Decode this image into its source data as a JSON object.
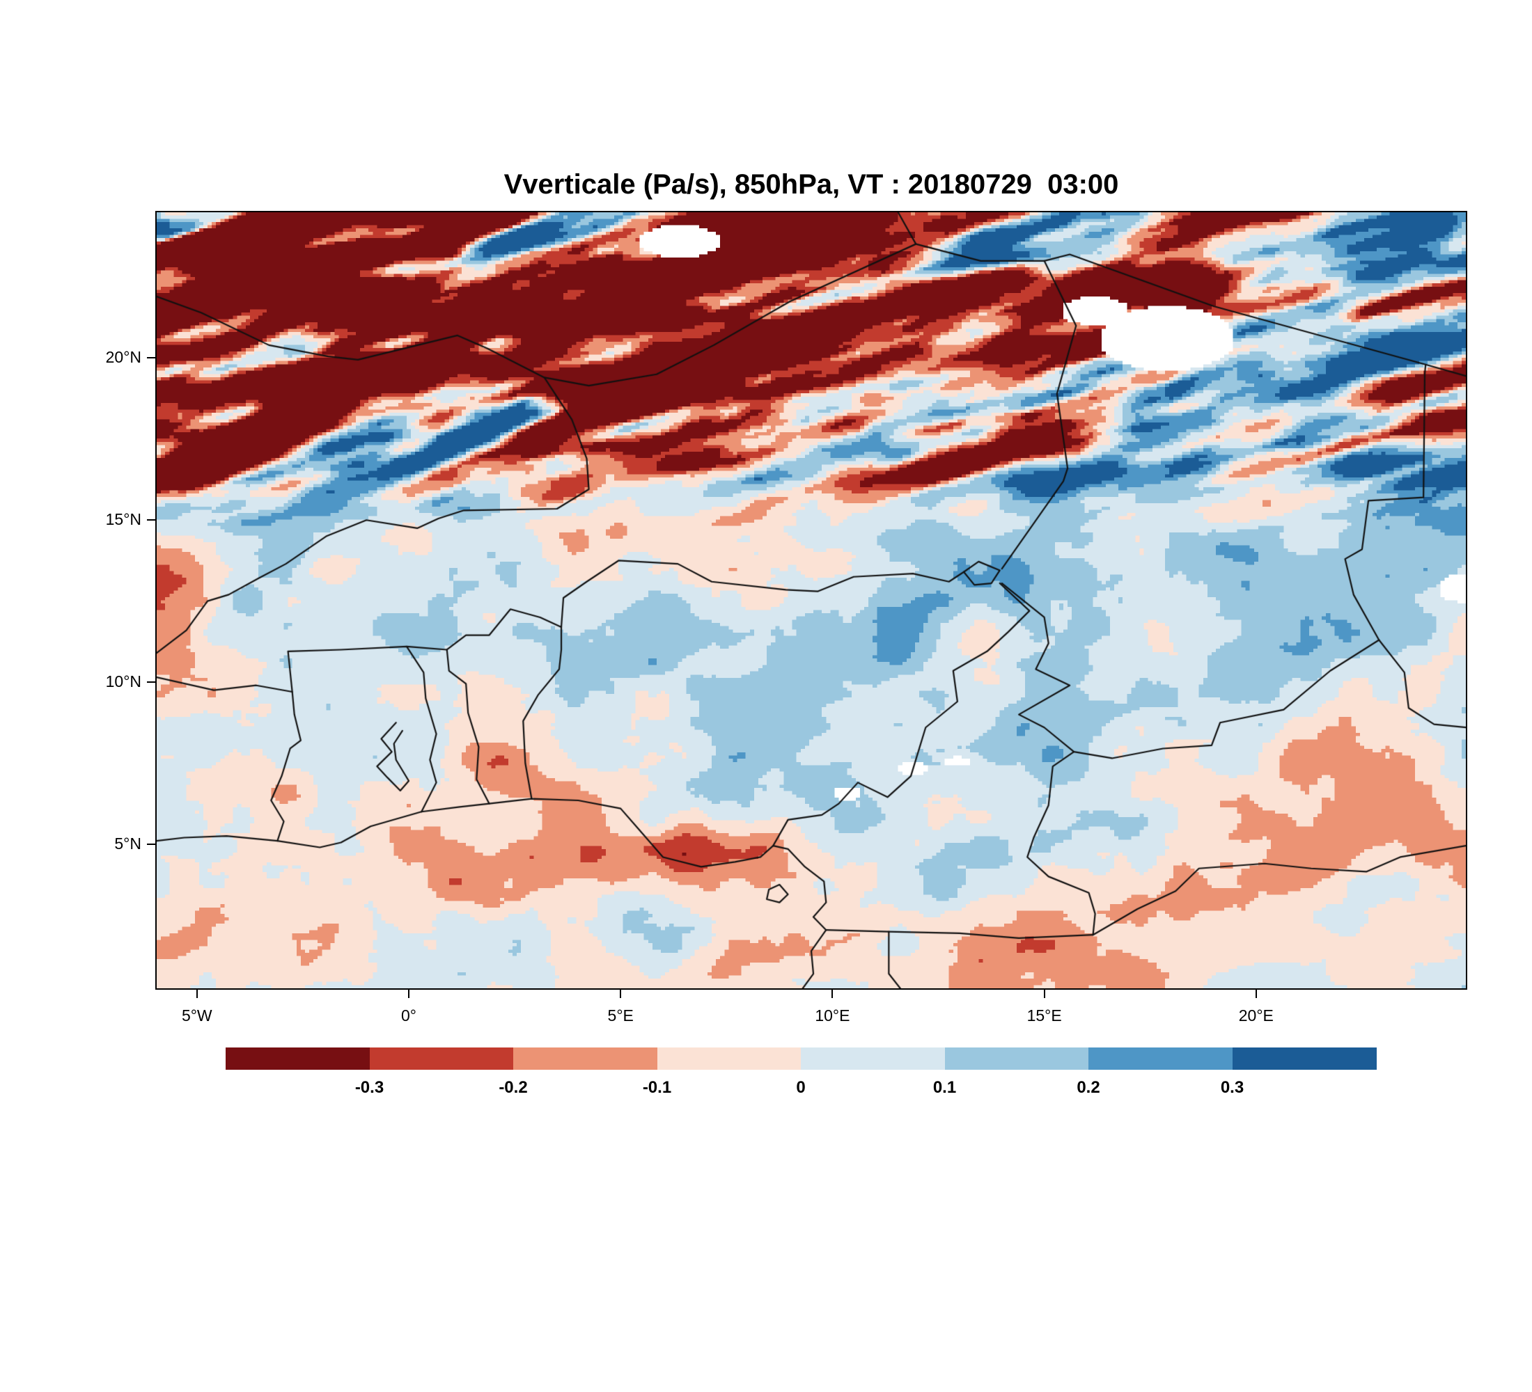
{
  "title": "Vverticale (Pa/s), 850hPa, VT : 20180729  03:00",
  "chart_data": {
    "type": "heatmap",
    "variable": "Vverticale",
    "units": "Pa/s",
    "pressure_level": "850hPa",
    "valid_time": "20180729 03:00",
    "title": "Vverticale (Pa/s), 850hPa, VT : 20180729  03:00",
    "extent": {
      "lon_min": -5.95,
      "lon_max": 24.95,
      "lat_min": 0.55,
      "lat_max": 24.5
    },
    "grid": {
      "nx": 309,
      "ny": 240
    },
    "xticks": [
      {
        "lon": -5,
        "label": "5°W"
      },
      {
        "lon": 0,
        "label": "0°"
      },
      {
        "lon": 5,
        "label": "5°E"
      },
      {
        "lon": 10,
        "label": "10°E"
      },
      {
        "lon": 15,
        "label": "15°E"
      },
      {
        "lon": 20,
        "label": "20°E"
      }
    ],
    "yticks": [
      {
        "lat": 20,
        "label": "20°N"
      },
      {
        "lat": 15,
        "label": "15°N"
      },
      {
        "lat": 10,
        "label": "10°N"
      },
      {
        "lat": 5,
        "label": "5°N"
      }
    ],
    "colorbar": {
      "levels": [
        -0.3,
        -0.2,
        -0.1,
        0,
        0.1,
        0.2,
        0.3
      ],
      "labels": [
        "-0.3",
        "-0.2",
        "-0.1",
        "0",
        "0.1",
        "0.2",
        "0.3"
      ],
      "colors": [
        "#770f12",
        "#c23b2e",
        "#ec9374",
        "#fbe2d5",
        "#d7e7f0",
        "#9ac7df",
        "#4e96c6",
        "#1b5c96"
      ],
      "missing_color": "#ffffff",
      "orientation": "horizontal"
    },
    "field_summary": [
      "Strong alternating SW-NE elongated bands of subsidence (dark red, < -0.3 Pa/s) and ascent (dark blue, > 0.3 Pa/s) across the Sahara between 15N and 24.5N, most intense in the northwest quadrant",
      "Dark red descent band hugging the Guinea coast near 4-5N between 4E and 9E",
      "Mostly weak values between -0.1 and 0.1 (pale pink / pale blue) over the band 5N-14N",
      "Pale blue broad zone around 12N-16N mid-longitudes; pale pink dominates south of 8N",
      "Scattered strong blue cells near 10N 0E, 7-8N 10-12E, 5-6N 22-23E and along 17-24E 13-18N",
      "White pixels indicate missing/masked data: near 6-7E 23-24N, 16-19E 20-21.5N and small spots near 10-13E 6-8N"
    ],
    "noise": {
      "seeds": [
        11,
        23,
        47,
        83,
        131
      ],
      "base": [
        {
          "amp": 0.22,
          "fx": 0.18,
          "fy": 0.18,
          "oct": 3,
          "seed_index": 0
        },
        {
          "amp": 0.2,
          "fx": 0.52,
          "fy": 0.52,
          "oct": 4,
          "seed_index": 1
        },
        {
          "amp": 0.13,
          "fx": 0.3,
          "fy": 0.3,
          "oct": 3,
          "seed_index": 4
        }
      ],
      "band": {
        "angle_cos": 0.94,
        "angle_sin": 0.34,
        "ramp_lat0": 14.2,
        "ramp_lat1": 17.6,
        "terms": [
          {
            "amp": 1.0,
            "fa": 0.17,
            "fb": 0.8,
            "oct": 3,
            "seed_index": 2
          },
          {
            "amp": 0.45,
            "fa": 0.45,
            "fb": 1.4,
            "oct": 3,
            "seed_index": 1
          }
        ],
        "bias": -0.05,
        "west_boost": 0.4
      },
      "coast_anomaly": {
        "lat": 4.55,
        "lon": 6.6,
        "sig_lat2": 1.1,
        "sig_lon2": 9.0,
        "amp": -0.5,
        "seed_index": 3
      },
      "lat_bias": {
        "blue_center": 14,
        "blue_sig2": 10,
        "blue_amp": 0.03,
        "south_amp": -0.018,
        "south_lat0": 4.5,
        "south_lat1": 8.5
      }
    },
    "missing_patches": [
      [
        6.4,
        23.6,
        0.95,
        0.5
      ],
      [
        17.9,
        20.6,
        1.6,
        1.0
      ],
      [
        16.2,
        21.45,
        0.8,
        0.45
      ],
      [
        24.9,
        12.9,
        0.6,
        0.45
      ],
      [
        11.9,
        7.35,
        0.4,
        0.2
      ],
      [
        12.95,
        7.55,
        0.3,
        0.15
      ],
      [
        10.35,
        6.55,
        0.35,
        0.2
      ]
    ]
  },
  "map": {
    "border_color": "#111111",
    "borders": [
      {
        "name": "guinea-coastline",
        "pts": [
          [
            -5.95,
            5.1
          ],
          [
            -5.3,
            5.2
          ],
          [
            -4.3,
            5.25
          ],
          [
            -3.1,
            5.1
          ],
          [
            -2.1,
            4.9
          ],
          [
            -1.6,
            5.05
          ],
          [
            -0.9,
            5.55
          ],
          [
            0.3,
            6.0
          ],
          [
            1.2,
            6.15
          ],
          [
            1.9,
            6.25
          ],
          [
            2.9,
            6.4
          ],
          [
            4.0,
            6.35
          ],
          [
            5.0,
            6.1
          ],
          [
            5.4,
            5.5
          ],
          [
            6.0,
            4.6
          ],
          [
            6.9,
            4.3
          ],
          [
            7.7,
            4.45
          ],
          [
            8.3,
            4.6
          ],
          [
            8.6,
            4.95
          ],
          [
            8.95,
            4.85
          ],
          [
            9.35,
            4.3
          ],
          [
            9.8,
            3.85
          ],
          [
            9.85,
            3.2
          ],
          [
            9.55,
            2.75
          ],
          [
            9.85,
            2.35
          ],
          [
            9.5,
            1.7
          ],
          [
            9.55,
            1.0
          ],
          [
            9.3,
            0.55
          ]
        ]
      },
      {
        "name": "bioko-island",
        "pts": [
          [
            8.45,
            3.3
          ],
          [
            8.75,
            3.2
          ],
          [
            8.95,
            3.45
          ],
          [
            8.75,
            3.75
          ],
          [
            8.5,
            3.6
          ],
          [
            8.45,
            3.3
          ]
        ]
      },
      {
        "name": "lake-volta",
        "pts": [
          [
            -0.3,
            8.75
          ],
          [
            -0.65,
            8.25
          ],
          [
            -0.4,
            7.85
          ],
          [
            -0.75,
            7.4
          ],
          [
            -0.5,
            7.05
          ],
          [
            -0.2,
            6.65
          ],
          [
            0.0,
            6.95
          ],
          [
            -0.3,
            7.6
          ],
          [
            -0.35,
            8.1
          ],
          [
            -0.15,
            8.5
          ]
        ]
      },
      {
        "name": "lake-chad",
        "pts": [
          [
            13.1,
            13.4
          ],
          [
            13.45,
            13.72
          ],
          [
            13.95,
            13.45
          ],
          [
            13.75,
            13.05
          ],
          [
            13.35,
            13.0
          ],
          [
            13.1,
            13.4
          ]
        ]
      },
      {
        "name": "cotedivoire-ghana",
        "pts": [
          [
            -3.1,
            5.1
          ],
          [
            -2.95,
            5.7
          ],
          [
            -3.25,
            6.35
          ],
          [
            -3.0,
            7.1
          ],
          [
            -2.8,
            7.95
          ],
          [
            -2.55,
            8.2
          ],
          [
            -2.7,
            9.0
          ],
          [
            -2.75,
            9.7
          ]
        ]
      },
      {
        "name": "ghana-togo",
        "pts": [
          [
            0.3,
            6.0
          ],
          [
            0.65,
            6.9
          ],
          [
            0.5,
            7.6
          ],
          [
            0.65,
            8.4
          ],
          [
            0.4,
            9.5
          ],
          [
            0.35,
            10.3
          ],
          [
            -0.05,
            11.1
          ]
        ]
      },
      {
        "name": "togo-benin",
        "pts": [
          [
            1.9,
            6.25
          ],
          [
            1.6,
            7.0
          ],
          [
            1.65,
            8.0
          ],
          [
            1.4,
            9.05
          ],
          [
            1.35,
            9.95
          ],
          [
            0.95,
            10.35
          ],
          [
            0.9,
            11.0
          ]
        ]
      },
      {
        "name": "benin-nigeria",
        "pts": [
          [
            2.9,
            6.4
          ],
          [
            2.75,
            7.5
          ],
          [
            2.7,
            8.8
          ],
          [
            3.05,
            9.6
          ],
          [
            3.55,
            10.4
          ],
          [
            3.6,
            11.0
          ],
          [
            3.6,
            11.7
          ]
        ]
      },
      {
        "name": "burkina-south",
        "pts": [
          [
            -5.95,
            10.15
          ],
          [
            -4.6,
            9.75
          ],
          [
            -3.6,
            9.9
          ],
          [
            -2.75,
            9.7
          ],
          [
            -2.85,
            10.95
          ],
          [
            -1.6,
            11.0
          ],
          [
            -0.05,
            11.1
          ],
          [
            0.9,
            11.0
          ],
          [
            1.35,
            11.45
          ],
          [
            1.9,
            11.45
          ],
          [
            2.4,
            12.25
          ],
          [
            3.1,
            12.0
          ],
          [
            3.6,
            11.7
          ]
        ]
      },
      {
        "name": "mali-burkina-niger",
        "pts": [
          [
            -5.95,
            10.9
          ],
          [
            -5.25,
            11.6
          ],
          [
            -4.75,
            12.5
          ],
          [
            -4.25,
            12.7
          ],
          [
            -3.55,
            13.2
          ],
          [
            -2.9,
            13.65
          ],
          [
            -1.95,
            14.5
          ],
          [
            -1.0,
            15.0
          ],
          [
            0.2,
            14.75
          ],
          [
            0.7,
            15.05
          ],
          [
            1.3,
            15.3
          ],
          [
            3.5,
            15.35
          ],
          [
            4.25,
            15.95
          ],
          [
            4.2,
            16.9
          ],
          [
            3.85,
            18.1
          ],
          [
            3.2,
            19.4
          ]
        ]
      },
      {
        "name": "algeria-mali-niger",
        "pts": [
          [
            -5.95,
            21.9
          ],
          [
            -4.9,
            21.4
          ],
          [
            -3.3,
            20.4
          ],
          [
            -1.9,
            20.05
          ],
          [
            -1.2,
            19.95
          ],
          [
            1.15,
            20.7
          ],
          [
            1.85,
            20.3
          ],
          [
            3.2,
            19.4
          ],
          [
            4.25,
            19.15
          ],
          [
            5.85,
            19.5
          ],
          [
            7.2,
            20.4
          ],
          [
            9.0,
            21.75
          ],
          [
            11.97,
            23.52
          ]
        ]
      },
      {
        "name": "algeria-libya",
        "pts": [
          [
            11.97,
            23.52
          ],
          [
            11.55,
            24.5
          ]
        ]
      },
      {
        "name": "libya-niger-chad",
        "pts": [
          [
            11.97,
            23.52
          ],
          [
            13.5,
            23.0
          ],
          [
            15.0,
            23.0
          ],
          [
            15.6,
            23.2
          ],
          [
            19.0,
            21.6
          ],
          [
            24.0,
            19.8
          ],
          [
            24.95,
            19.45
          ]
        ]
      },
      {
        "name": "niger-chad",
        "pts": [
          [
            15.0,
            23.0
          ],
          [
            15.75,
            21.0
          ],
          [
            15.3,
            18.9
          ],
          [
            15.55,
            16.6
          ],
          [
            15.45,
            16.2
          ],
          [
            14.0,
            13.5
          ]
        ]
      },
      {
        "name": "niger-nigeria",
        "pts": [
          [
            3.6,
            11.7
          ],
          [
            3.65,
            12.6
          ],
          [
            4.2,
            13.1
          ],
          [
            4.95,
            13.75
          ],
          [
            6.35,
            13.65
          ],
          [
            7.15,
            13.1
          ],
          [
            8.9,
            12.85
          ],
          [
            9.65,
            12.8
          ],
          [
            10.5,
            13.25
          ],
          [
            11.9,
            13.35
          ],
          [
            12.75,
            13.1
          ],
          [
            13.1,
            13.4
          ]
        ]
      },
      {
        "name": "nigeria-cameroon",
        "pts": [
          [
            13.95,
            13.05
          ],
          [
            14.65,
            12.2
          ],
          [
            14.15,
            11.55
          ],
          [
            13.65,
            10.95
          ],
          [
            12.85,
            10.35
          ],
          [
            12.95,
            9.4
          ],
          [
            12.2,
            8.6
          ],
          [
            11.85,
            7.1
          ],
          [
            11.3,
            6.45
          ],
          [
            10.6,
            6.9
          ],
          [
            10.15,
            6.25
          ],
          [
            9.75,
            5.9
          ],
          [
            8.95,
            5.75
          ],
          [
            8.6,
            4.95
          ]
        ]
      },
      {
        "name": "chad-southwest",
        "pts": [
          [
            14.0,
            13.05
          ],
          [
            15.0,
            12.0
          ],
          [
            15.1,
            11.2
          ],
          [
            14.8,
            10.4
          ],
          [
            15.6,
            9.9
          ],
          [
            14.4,
            9.0
          ],
          [
            15.0,
            8.6
          ],
          [
            15.7,
            7.85
          ],
          [
            16.6,
            7.65
          ],
          [
            17.8,
            7.95
          ],
          [
            18.95,
            8.05
          ],
          [
            19.15,
            8.75
          ],
          [
            20.65,
            9.15
          ],
          [
            21.75,
            10.35
          ],
          [
            22.9,
            11.3
          ]
        ]
      },
      {
        "name": "cameroon-car",
        "pts": [
          [
            15.7,
            7.85
          ],
          [
            15.2,
            7.4
          ],
          [
            15.1,
            6.2
          ],
          [
            14.75,
            5.2
          ],
          [
            14.6,
            4.6
          ],
          [
            15.1,
            4.0
          ],
          [
            16.05,
            3.5
          ],
          [
            16.2,
            2.85
          ],
          [
            16.15,
            2.2
          ]
        ]
      },
      {
        "name": "cameroon-gabon-congo",
        "pts": [
          [
            9.85,
            2.35
          ],
          [
            11.33,
            2.3
          ],
          [
            13.0,
            2.25
          ],
          [
            14.4,
            2.1
          ],
          [
            16.15,
            2.2
          ]
        ]
      },
      {
        "name": "eqguinea-gabon",
        "pts": [
          [
            11.33,
            2.3
          ],
          [
            11.33,
            1.0
          ],
          [
            11.6,
            0.55
          ]
        ]
      },
      {
        "name": "chad-sudan",
        "pts": [
          [
            22.9,
            11.3
          ],
          [
            22.3,
            12.7
          ],
          [
            22.1,
            13.8
          ],
          [
            22.5,
            14.1
          ],
          [
            22.65,
            15.6
          ],
          [
            23.95,
            15.7
          ],
          [
            23.98,
            19.5
          ],
          [
            24.0,
            19.8
          ]
        ]
      },
      {
        "name": "car-sudan",
        "pts": [
          [
            22.9,
            11.3
          ],
          [
            23.5,
            10.3
          ],
          [
            23.6,
            9.2
          ],
          [
            24.2,
            8.7
          ],
          [
            24.95,
            8.6
          ]
        ]
      },
      {
        "name": "car-south",
        "pts": [
          [
            16.15,
            2.2
          ],
          [
            17.2,
            3.0
          ],
          [
            18.1,
            3.55
          ],
          [
            18.65,
            4.25
          ],
          [
            20.2,
            4.4
          ],
          [
            21.3,
            4.25
          ],
          [
            22.6,
            4.15
          ],
          [
            23.4,
            4.6
          ],
          [
            24.95,
            4.95
          ]
        ]
      }
    ]
  }
}
